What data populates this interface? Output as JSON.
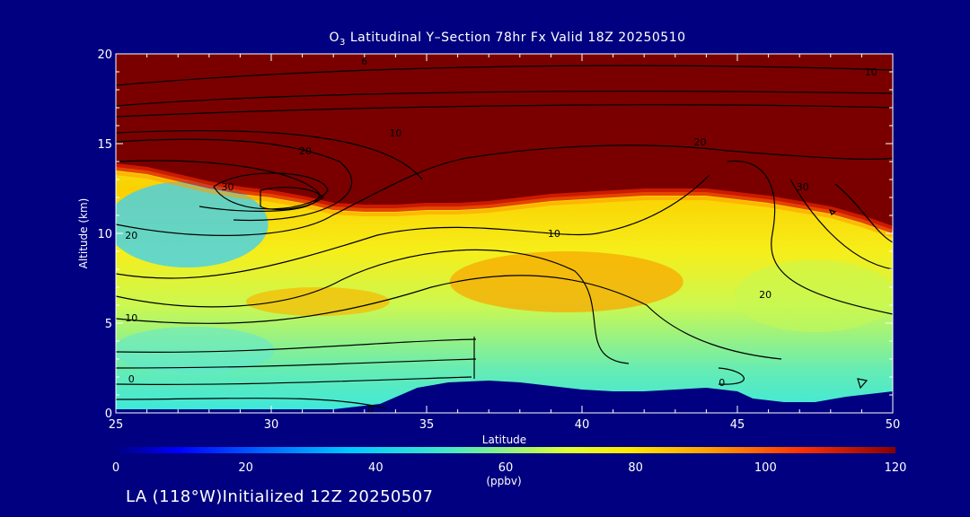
{
  "title": {
    "prefix": "O",
    "subscript": "3",
    "rest": " Latitudinal Y–Section 78hr  Fx Valid 18Z 20250510"
  },
  "footer": "LA (118°W)Initialized 12Z 20250507",
  "colorbar": {
    "ticks": [
      "0",
      "20",
      "40",
      "60",
      "80",
      "100",
      "120"
    ],
    "unit_label": "(ppbv)",
    "min": 0,
    "max": 120
  },
  "chart_data": {
    "type": "heatmap",
    "title": "O3 Latitudinal Y–Section 78hr  Fx Valid 18Z 20250510",
    "xlabel": "Latitude",
    "ylabel": "Altitude (km)",
    "xlim": [
      25,
      50
    ],
    "ylim": [
      0,
      20
    ],
    "x_ticks": [
      25,
      30,
      35,
      40,
      45,
      50
    ],
    "y_ticks": [
      0,
      5,
      10,
      15,
      20
    ],
    "colorbar_range": [
      0,
      120
    ],
    "colorbar_unit": "(ppbv)",
    "colormap": "rainbow",
    "contour_labels": [
      {
        "label": "0",
        "x": 33.2,
        "y": 0.2
      },
      {
        "label": "0",
        "x": 25.5,
        "y": 1.9
      },
      {
        "label": "0",
        "x": 44.5,
        "y": 1.7
      },
      {
        "label": "10",
        "x": 25.5,
        "y": 5.3
      },
      {
        "label": "20",
        "x": 25.5,
        "y": 9.9
      },
      {
        "label": "30",
        "x": 28.6,
        "y": 12.6
      },
      {
        "label": "10",
        "x": 39.1,
        "y": 10
      },
      {
        "label": "20",
        "x": 45.9,
        "y": 6.6
      },
      {
        "label": "30",
        "x": 47.1,
        "y": 12.6
      },
      {
        "label": "20",
        "x": 31.1,
        "y": 14.6
      },
      {
        "label": "10",
        "x": 34,
        "y": 15.6
      },
      {
        "label": "20",
        "x": 43.8,
        "y": 15.1
      },
      {
        "label": "6",
        "x": 33,
        "y": 19.6
      },
      {
        "label": "10",
        "x": 49.3,
        "y": 19
      }
    ],
    "stratosphere_boundary_km": [
      [
        25,
        13.7
      ],
      [
        26,
        13.5
      ],
      [
        27,
        13.1
      ],
      [
        28,
        12.7
      ],
      [
        29,
        12.4
      ],
      [
        30,
        12.2
      ],
      [
        31,
        11.9
      ],
      [
        32,
        11.5
      ],
      [
        33,
        11.4
      ],
      [
        34,
        11.4
      ],
      [
        35,
        11.5
      ],
      [
        36,
        11.5
      ],
      [
        37,
        11.6
      ],
      [
        38,
        11.8
      ],
      [
        39,
        12
      ],
      [
        40,
        12.1
      ],
      [
        41,
        12.2
      ],
      [
        42,
        12.3
      ],
      [
        43,
        12.3
      ],
      [
        44,
        12.3
      ],
      [
        45,
        12.1
      ],
      [
        46,
        11.9
      ],
      [
        47,
        11.6
      ],
      [
        48,
        11.3
      ],
      [
        49,
        10.8
      ],
      [
        50,
        10.2
      ]
    ],
    "terrain_km": [
      [
        25,
        0.2
      ],
      [
        30,
        0.2
      ],
      [
        32,
        0.2
      ],
      [
        33.5,
        0.5
      ],
      [
        34.7,
        1.4
      ],
      [
        35.7,
        1.7
      ],
      [
        37,
        1.8
      ],
      [
        38,
        1.7
      ],
      [
        39,
        1.5
      ],
      [
        40,
        1.3
      ],
      [
        41,
        1.2
      ],
      [
        42,
        1.2
      ],
      [
        43,
        1.3
      ],
      [
        44,
        1.4
      ],
      [
        45,
        1.2
      ],
      [
        45.5,
        0.8
      ],
      [
        46.5,
        0.6
      ],
      [
        47.5,
        0.6
      ],
      [
        48.5,
        0.9
      ],
      [
        49.5,
        1.1
      ],
      [
        50,
        1.2
      ]
    ]
  }
}
